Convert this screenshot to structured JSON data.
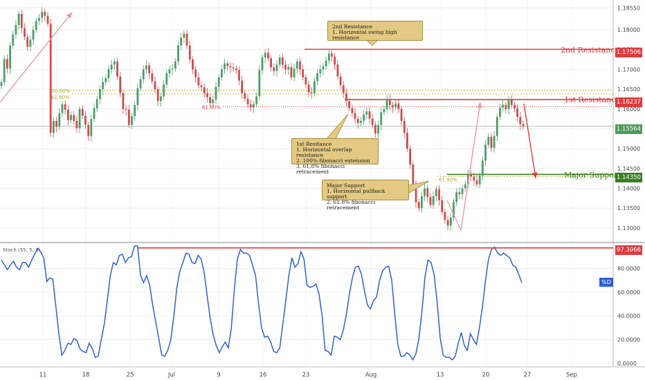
{
  "chart_data": [
    {
      "type": "candlestick",
      "panel": "price",
      "y_ticks": [
        "1.18550",
        "1.18000",
        "1.17500",
        "1.17000",
        "1.16500",
        "1.16000",
        "1.15500",
        "1.15000",
        "1.14500",
        "1.14000",
        "1.13500",
        "1.13000"
      ],
      "ylim": [
        1.1265,
        1.1875
      ],
      "x_ticks": [
        "11",
        "18",
        "25",
        "Jul",
        "9",
        "16",
        "23",
        "Aug",
        "13",
        "20",
        "27",
        "Sep"
      ],
      "series": [
        {
          "closes": [
            1.1668,
            1.1726,
            1.1702,
            1.176,
            1.1788,
            1.1812,
            1.184,
            1.1804,
            1.1782,
            1.1757,
            1.1775,
            1.18,
            1.1822,
            1.183,
            1.1845,
            1.1835,
            1.1815,
            1.154,
            1.157,
            1.1555,
            1.159,
            1.1612,
            1.1598,
            1.1572,
            1.1585,
            1.157,
            1.1552,
            1.16,
            1.1583,
            1.156,
            1.1532,
            1.1575,
            1.1602,
            1.1625,
            1.165,
            1.1668,
            1.1678,
            1.17,
            1.1712,
            1.172,
            1.1682,
            1.164,
            1.16,
            1.1598,
            1.156,
            1.1582,
            1.161,
            1.1652,
            1.1675,
            1.17,
            1.171,
            1.169,
            1.167,
            1.165,
            1.162,
            1.1632,
            1.1662,
            1.169,
            1.17,
            1.1702,
            1.172,
            1.176,
            1.178,
            1.179,
            1.176,
            1.1725,
            1.17,
            1.168,
            1.166,
            1.1655,
            1.164,
            1.163,
            1.1615,
            1.1624,
            1.1656,
            1.168,
            1.17,
            1.1715,
            1.1708,
            1.1705,
            1.1702,
            1.1698,
            1.1672,
            1.164,
            1.1626,
            1.1612,
            1.1604,
            1.1612,
            1.1632,
            1.1698,
            1.173,
            1.1742,
            1.1728,
            1.1705,
            1.1696,
            1.1712,
            1.173,
            1.1712,
            1.17,
            1.1706,
            1.168,
            1.1702,
            1.172,
            1.17,
            1.168,
            1.1662,
            1.1642,
            1.164,
            1.167,
            1.169,
            1.17,
            1.1708,
            1.1722,
            1.174,
            1.1732,
            1.1712,
            1.1682,
            1.166,
            1.164,
            1.162,
            1.1602,
            1.159,
            1.1575,
            1.1565,
            1.157,
            1.1586,
            1.1594,
            1.1576,
            1.156,
            1.1538,
            1.156,
            1.1592,
            1.16,
            1.1625,
            1.161,
            1.1604,
            1.1614,
            1.16,
            1.157,
            1.154,
            1.15,
            1.146,
            1.1408,
            1.1365,
            1.135,
            1.138,
            1.14,
            1.1378,
            1.1358,
            1.138,
            1.1398,
            1.137,
            1.134,
            1.132,
            1.1306,
            1.1326,
            1.1366,
            1.139,
            1.1385,
            1.14,
            1.141,
            1.1435,
            1.143,
            1.142,
            1.141,
            1.1432,
            1.147,
            1.151,
            1.153,
            1.1502,
            1.1532,
            1.158,
            1.1603,
            1.1611,
            1.16,
            1.1623,
            1.161,
            1.1602,
            1.158,
            1.1562,
            1.1556
          ]
        }
      ]
    },
    {
      "type": "line",
      "panel": "oscillator",
      "y_ticks": [
        "80.0000",
        "60.0000",
        "40.0000",
        "20.0000",
        "0.0000"
      ],
      "ylim": [
        -2.4,
        100.7
      ],
      "series": [
        {
          "name": "%D",
          "values": [
            87,
            83,
            79,
            83,
            86,
            81,
            79,
            85,
            85,
            81,
            87,
            92,
            97,
            94,
            89,
            69,
            72,
            71,
            48,
            25,
            7,
            11,
            17,
            16,
            21,
            19,
            12,
            10,
            9,
            17,
            13,
            5,
            6,
            20,
            33,
            53,
            74,
            85,
            83,
            91,
            92,
            85,
            89,
            90,
            99,
            99,
            74,
            68,
            74,
            66,
            49,
            35,
            21,
            7,
            6,
            11,
            20,
            40,
            64,
            78,
            85,
            93,
            92,
            85,
            84,
            91,
            88,
            77,
            57,
            38,
            24,
            15,
            9,
            14,
            18,
            13,
            30,
            63,
            88,
            96,
            93,
            93,
            91,
            83,
            74,
            50,
            30,
            22,
            23,
            18,
            10,
            9,
            13,
            33,
            53,
            74,
            89,
            81,
            84,
            94,
            88,
            66,
            64,
            65,
            67,
            58,
            40,
            11,
            10,
            7,
            23,
            22,
            20,
            28,
            41,
            58,
            72,
            81,
            82,
            75,
            61,
            49,
            46,
            53,
            56,
            70,
            78,
            81,
            82,
            70,
            42,
            16,
            6,
            6,
            9,
            7,
            3,
            8,
            21,
            44,
            73,
            87,
            85,
            75,
            52,
            22,
            7,
            5,
            5,
            3,
            6,
            17,
            26,
            15,
            11,
            25,
            20,
            16,
            30,
            48,
            70,
            88,
            96,
            98,
            93,
            91,
            93,
            91,
            89,
            83,
            81,
            75,
            68
          ]
        },
        {
          "name": "%K",
          "values": [
            97.3066
          ]
        }
      ]
    }
  ],
  "annotations": {
    "res2": {
      "title": "2nd Resistance",
      "items": [
        "1. Horizontal swing high resistance"
      ]
    },
    "res1": {
      "title": "1st Resitance",
      "items": [
        "1. Horizontal overlap resistance",
        "2. 100% fibonacci extension",
        "3. 61.8% fibonacci retracement"
      ]
    },
    "support": {
      "title": "Major Support",
      "items": [
        "1. Horizontal pullback support",
        "2. 61.8% fibonacci retracement"
      ]
    }
  },
  "levels": {
    "res2": {
      "label": "2nd Resistance",
      "price": "1.17506",
      "color": "#e03a3e"
    },
    "res1": {
      "label": "1st Resistance",
      "price": "1.16237",
      "color": "#e03a3e"
    },
    "support": {
      "label": "Major Support",
      "price": "1.14350",
      "color": "#3a7d22"
    },
    "current": {
      "price": "1.15564",
      "color": "#4d9a5a"
    },
    "stoch_resistance": {
      "value": "97.3066",
      "color": "#e03a3e"
    }
  },
  "fib_labels": {
    "ext100": "100.00%",
    "ret618_a": "61.80%",
    "ret618_b": "61.80%",
    "ret618_c": "61.80%"
  },
  "stoch_label": "Stoch (55, 5, 3)",
  "stoch_series_label": "%D",
  "colors": {
    "up": "#4a9d6a",
    "down": "#d04a4a",
    "line": "#2f5fd0",
    "grid": "#eeeeee"
  }
}
